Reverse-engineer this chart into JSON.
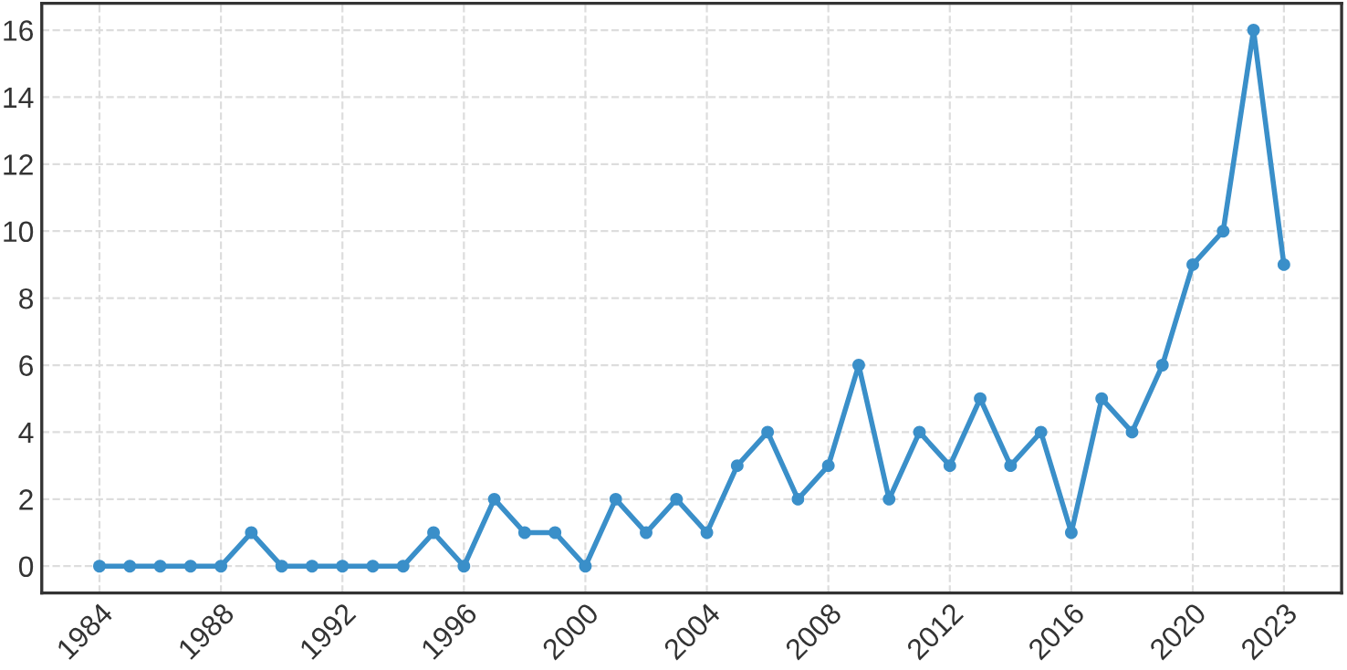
{
  "chart_data": {
    "type": "line",
    "x": [
      1984,
      1985,
      1986,
      1987,
      1988,
      1989,
      1990,
      1991,
      1992,
      1993,
      1994,
      1995,
      1996,
      1997,
      1998,
      1999,
      2000,
      2001,
      2002,
      2003,
      2004,
      2005,
      2006,
      2007,
      2008,
      2009,
      2010,
      2011,
      2012,
      2013,
      2014,
      2015,
      2016,
      2017,
      2018,
      2019,
      2020,
      2021,
      2022,
      2023
    ],
    "series": [
      {
        "color": "#3a8fc9",
        "values": [
          0,
          0,
          0,
          0,
          0,
          1,
          0,
          0,
          0,
          0,
          0,
          1,
          0,
          2,
          1,
          1,
          0,
          2,
          1,
          2,
          1,
          3,
          4,
          2,
          3,
          6,
          2,
          4,
          3,
          5,
          3,
          4,
          1,
          5,
          4,
          6,
          9,
          10,
          16,
          9
        ]
      }
    ],
    "xlim": [
      1982.1,
      2024.9
    ],
    "xticks": [
      1984,
      1988,
      1992,
      1996,
      2000,
      2004,
      2008,
      2012,
      2016,
      2020,
      2023
    ],
    "ylim": [
      -0.8,
      16.8
    ],
    "yticks": [
      0,
      2,
      4,
      6,
      8,
      10,
      12,
      14,
      16
    ],
    "grid": true,
    "marker": "circle",
    "line_style": "solid"
  }
}
